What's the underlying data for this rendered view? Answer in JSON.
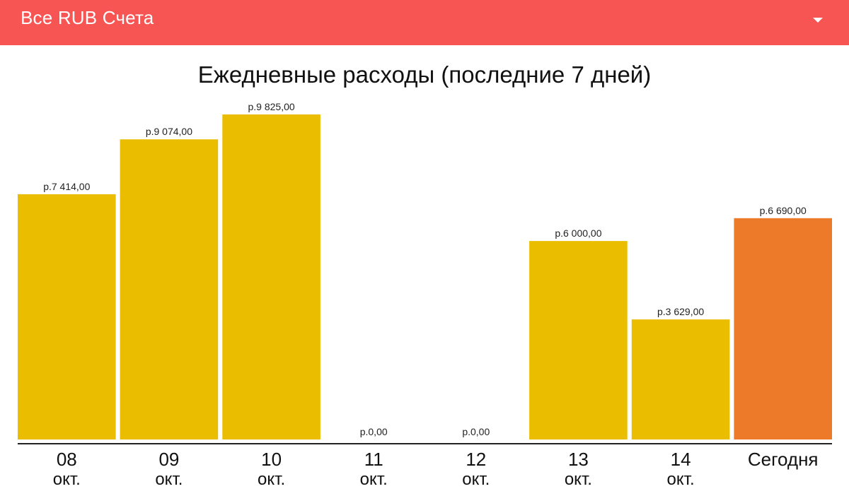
{
  "header": {
    "account_selector": "Все RUB Счета",
    "dropdown_icon": "arrow-drop-down-icon",
    "bar_color": "#f75454"
  },
  "chart_data": {
    "type": "bar",
    "title": "Ежедневные расходы (последние 7 дней)",
    "xlabel": "",
    "ylabel": "",
    "categories": [
      {
        "top": "08",
        "bottom": "окт."
      },
      {
        "top": "09",
        "bottom": "окт."
      },
      {
        "top": "10",
        "bottom": "окт."
      },
      {
        "top": "11",
        "bottom": "окт."
      },
      {
        "top": "12",
        "bottom": "окт."
      },
      {
        "top": "13",
        "bottom": "окт."
      },
      {
        "top": "14",
        "bottom": "окт."
      },
      {
        "top": "Сегодня",
        "bottom": ""
      }
    ],
    "values": [
      7414,
      9074,
      9825,
      0,
      0,
      6000,
      3629,
      6690
    ],
    "value_labels": [
      "р.7 414,00",
      "р.9 074,00",
      "р.9 825,00",
      "р.0,00",
      "р.0,00",
      "р.6 000,00",
      "р.3 629,00",
      "р.6 690,00"
    ],
    "ylim": [
      0,
      9825
    ],
    "grid": false,
    "legend": "none",
    "colors": {
      "default": "#ebbd00",
      "highlight": "#ed7a28",
      "baseline": "#222222"
    },
    "highlight_index": 7
  }
}
